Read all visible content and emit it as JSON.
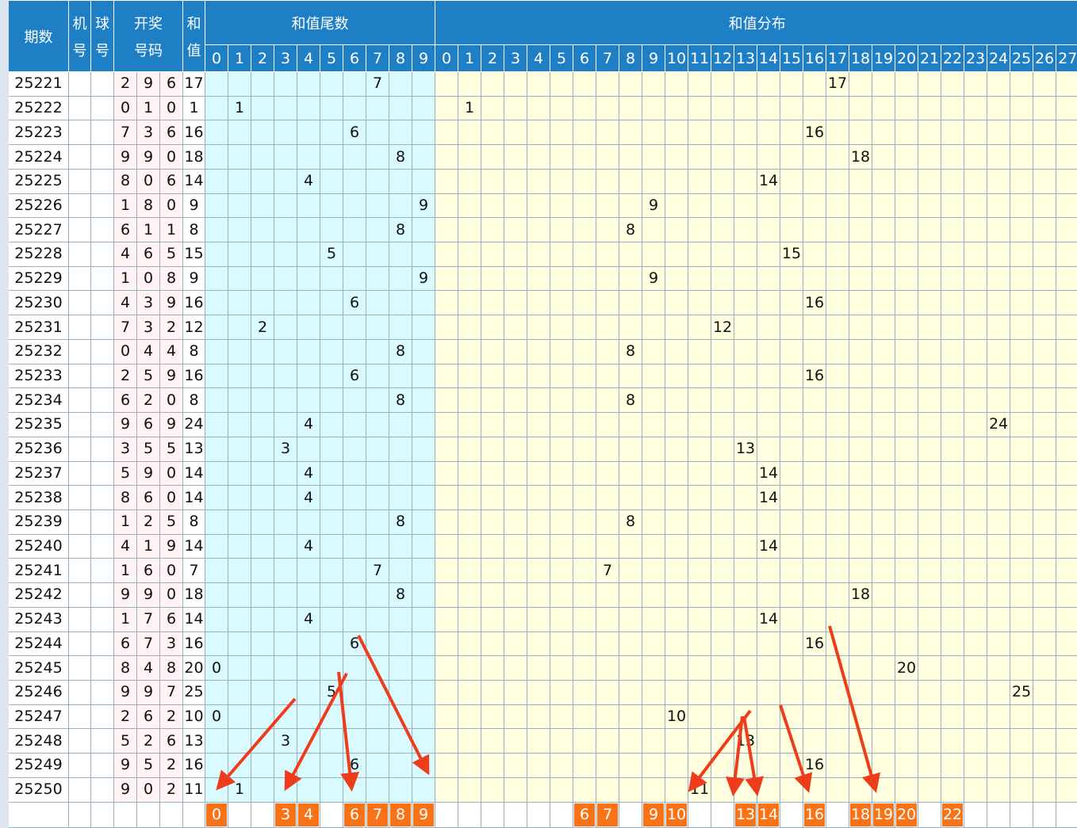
{
  "header": {
    "issue": "期数",
    "machine": [
      "机",
      "号"
    ],
    "ball": [
      "球",
      "号"
    ],
    "draw": [
      "开奖",
      "号码"
    ],
    "sum": [
      "和",
      "值"
    ],
    "tail_title": "和值尾数",
    "dist_title": "和值分布",
    "tail_cols": [
      "0",
      "1",
      "2",
      "3",
      "4",
      "5",
      "6",
      "7",
      "8",
      "9"
    ],
    "dist_cols": [
      "0",
      "1",
      "2",
      "3",
      "4",
      "5",
      "6",
      "7",
      "8",
      "9",
      "10",
      "11",
      "12",
      "13",
      "14",
      "15",
      "16",
      "17",
      "18",
      "19",
      "20",
      "21",
      "22",
      "23",
      "24",
      "25",
      "26",
      "27"
    ]
  },
  "rows": [
    {
      "issue": "25221",
      "nums": [
        "2",
        "9",
        "6"
      ],
      "sum": "17"
    },
    {
      "issue": "25222",
      "nums": [
        "0",
        "1",
        "0"
      ],
      "sum": "1"
    },
    {
      "issue": "25223",
      "nums": [
        "7",
        "3",
        "6"
      ],
      "sum": "16"
    },
    {
      "issue": "25224",
      "nums": [
        "9",
        "9",
        "0"
      ],
      "sum": "18"
    },
    {
      "issue": "25225",
      "nums": [
        "8",
        "0",
        "6"
      ],
      "sum": "14"
    },
    {
      "issue": "25226",
      "nums": [
        "1",
        "8",
        "0"
      ],
      "sum": "9"
    },
    {
      "issue": "25227",
      "nums": [
        "6",
        "1",
        "1"
      ],
      "sum": "8"
    },
    {
      "issue": "25228",
      "nums": [
        "4",
        "6",
        "5"
      ],
      "sum": "15"
    },
    {
      "issue": "25229",
      "nums": [
        "1",
        "0",
        "8"
      ],
      "sum": "9"
    },
    {
      "issue": "25230",
      "nums": [
        "4",
        "3",
        "9"
      ],
      "sum": "16"
    },
    {
      "issue": "25231",
      "nums": [
        "7",
        "3",
        "2"
      ],
      "sum": "12"
    },
    {
      "issue": "25232",
      "nums": [
        "0",
        "4",
        "4"
      ],
      "sum": "8"
    },
    {
      "issue": "25233",
      "nums": [
        "2",
        "5",
        "9"
      ],
      "sum": "16"
    },
    {
      "issue": "25234",
      "nums": [
        "6",
        "2",
        "0"
      ],
      "sum": "8"
    },
    {
      "issue": "25235",
      "nums": [
        "9",
        "6",
        "9"
      ],
      "sum": "24"
    },
    {
      "issue": "25236",
      "nums": [
        "3",
        "5",
        "5"
      ],
      "sum": "13"
    },
    {
      "issue": "25237",
      "nums": [
        "5",
        "9",
        "0"
      ],
      "sum": "14"
    },
    {
      "issue": "25238",
      "nums": [
        "8",
        "6",
        "0"
      ],
      "sum": "14"
    },
    {
      "issue": "25239",
      "nums": [
        "1",
        "2",
        "5"
      ],
      "sum": "8"
    },
    {
      "issue": "25240",
      "nums": [
        "4",
        "1",
        "9"
      ],
      "sum": "14"
    },
    {
      "issue": "25241",
      "nums": [
        "1",
        "6",
        "0"
      ],
      "sum": "7"
    },
    {
      "issue": "25242",
      "nums": [
        "9",
        "9",
        "0"
      ],
      "sum": "18"
    },
    {
      "issue": "25243",
      "nums": [
        "1",
        "7",
        "6"
      ],
      "sum": "14"
    },
    {
      "issue": "25244",
      "nums": [
        "6",
        "7",
        "3"
      ],
      "sum": "16"
    },
    {
      "issue": "25245",
      "nums": [
        "8",
        "4",
        "8"
      ],
      "sum": "20"
    },
    {
      "issue": "25246",
      "nums": [
        "9",
        "9",
        "7"
      ],
      "sum": "25"
    },
    {
      "issue": "25247",
      "nums": [
        "2",
        "6",
        "2"
      ],
      "sum": "10"
    },
    {
      "issue": "25248",
      "nums": [
        "5",
        "2",
        "6"
      ],
      "sum": "13"
    },
    {
      "issue": "25249",
      "nums": [
        "9",
        "5",
        "2"
      ],
      "sum": "16"
    },
    {
      "issue": "25250",
      "nums": [
        "9",
        "0",
        "2"
      ],
      "sum": "11"
    }
  ],
  "highlight": {
    "tail": [
      "0",
      "3",
      "4",
      "6",
      "7",
      "8",
      "9"
    ],
    "dist": [
      "6",
      "7",
      "9",
      "10",
      "13",
      "14",
      "16",
      "18",
      "19",
      "20",
      "22"
    ]
  },
  "colors": {
    "header_bg": "#1f7fc5",
    "tail_bg": "#d9fbff",
    "dist_bg": "#ffffe0",
    "highlight_bg": "#f97316",
    "arrow": "#ee3d1c"
  }
}
